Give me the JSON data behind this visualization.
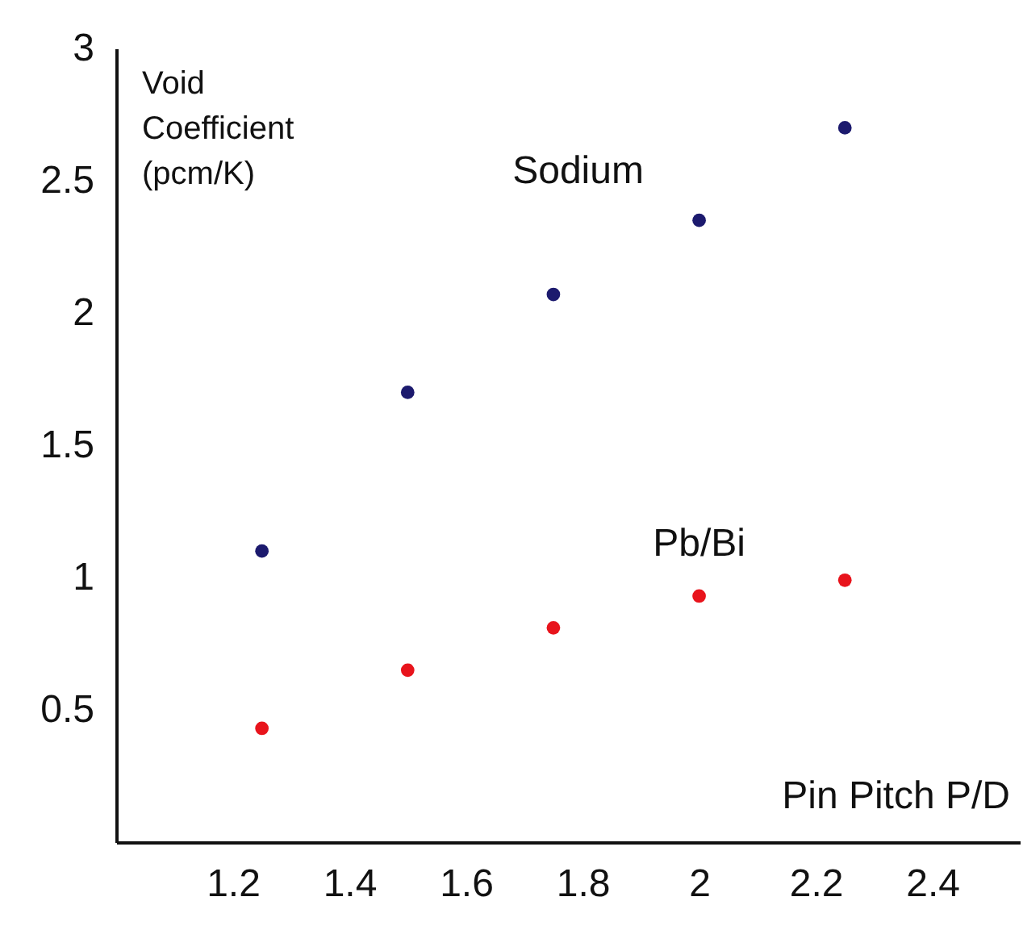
{
  "chart_data": {
    "type": "scatter",
    "xlabel": "Pin Pitch P/D",
    "ylabel": "Void Coefficient (pcm/K)",
    "x": [
      1.25,
      1.5,
      1.75,
      2,
      2.25
    ],
    "series": [
      {
        "name": "Sodium",
        "color": "#1c1a6e",
        "values": [
          1.1,
          1.7,
          2.07,
          2.35,
          2.7
        ]
      },
      {
        "name": "Pb/Bi",
        "color": "#e8141c",
        "values": [
          0.43,
          0.65,
          0.81,
          0.93,
          0.99
        ]
      }
    ],
    "xlim": [
      1,
      2.55
    ],
    "xticks": [
      1.2,
      1.4,
      1.6,
      1.8,
      2,
      2.2,
      2.4
    ],
    "ylim": [
      0,
      3
    ],
    "yticks": [
      0.5,
      1,
      1.5,
      2,
      2.5,
      3
    ],
    "grid": false,
    "legend": false,
    "marker": "circle"
  }
}
